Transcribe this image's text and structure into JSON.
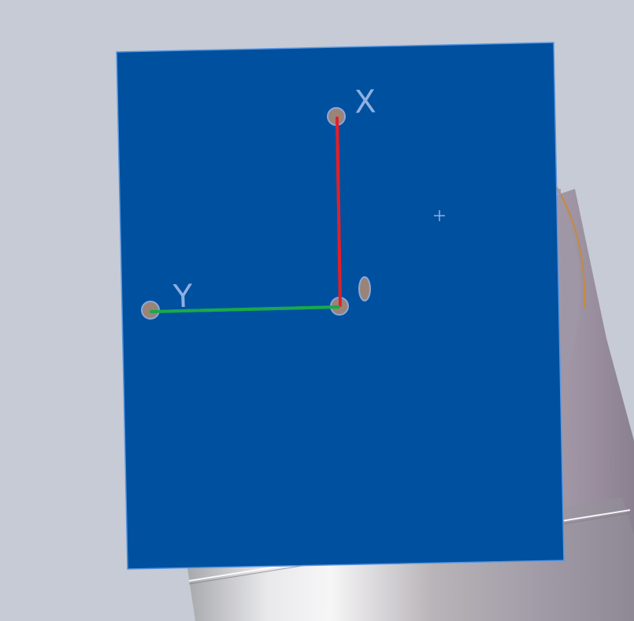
{
  "viewport": {
    "background_color": "#c6cbd5"
  },
  "sketch_plane": {
    "fill_color": "#0050a0",
    "edge_color": "#5a96e0"
  },
  "coordinate_system": {
    "x_axis_label": "X",
    "y_axis_label": "Y",
    "x_axis_color": "#e0202a",
    "y_axis_color": "#1aa84a",
    "point_color": "#9a8478"
  },
  "cursor": {
    "icon": "crosshair-icon"
  },
  "background_model": {
    "description_icon": "cylinder-part-icon"
  }
}
